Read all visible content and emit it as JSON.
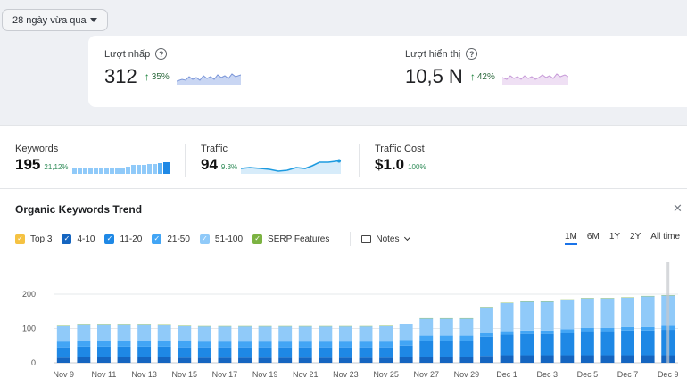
{
  "date_filter": {
    "label": "28 ngày vừa qua"
  },
  "gsc": {
    "clicks": {
      "label": "Lượt nhấp",
      "value": "312",
      "delta": "35%",
      "spark_color": "#7b96d8"
    },
    "impressions": {
      "label": "Lượt hiển thị",
      "value": "10,5 N",
      "delta": "42%",
      "spark_color": "#c79ad8"
    }
  },
  "kpis": {
    "keywords": {
      "label": "Keywords",
      "value": "195",
      "change": "21,12%"
    },
    "traffic": {
      "label": "Traffic",
      "value": "94",
      "change": "9.3%"
    },
    "traffic_cost": {
      "label": "Traffic Cost",
      "value": "$1.0",
      "change": "100%"
    }
  },
  "trend": {
    "title": "Organic Keywords Trend",
    "close_icon": "close-icon",
    "legend": [
      {
        "label": "Top 3",
        "color": "#f5c242"
      },
      {
        "label": "4-10",
        "color": "#1565c0"
      },
      {
        "label": "11-20",
        "color": "#1e88e5"
      },
      {
        "label": "21-50",
        "color": "#42a5f5"
      },
      {
        "label": "51-100",
        "color": "#90caf9"
      },
      {
        "label": "SERP Features",
        "color": "#7cb342"
      }
    ],
    "notes_label": "Notes",
    "ranges": [
      "1M",
      "6M",
      "1Y",
      "2Y",
      "All time"
    ],
    "active_range": "1M"
  },
  "chart_data": {
    "type": "bar",
    "stacked": true,
    "categories": [
      "Nov 9",
      "Nov 10",
      "Nov 11",
      "Nov 12",
      "Nov 13",
      "Nov 14",
      "Nov 15",
      "Nov 16",
      "Nov 17",
      "Nov 18",
      "Nov 19",
      "Nov 20",
      "Nov 21",
      "Nov 22",
      "Nov 23",
      "Nov 24",
      "Nov 25",
      "Nov 26",
      "Nov 27",
      "Nov 28",
      "Nov 29",
      "Nov 30",
      "Dec 1",
      "Dec 2",
      "Dec 3",
      "Dec 4",
      "Dec 5",
      "Dec 6",
      "Dec 7",
      "Dec 8",
      "Dec 9"
    ],
    "x_tick_labels": [
      "Nov 9",
      "Nov 11",
      "Nov 13",
      "Nov 15",
      "Nov 17",
      "Nov 19",
      "Nov 21",
      "Nov 23",
      "Nov 25",
      "Nov 27",
      "Nov 29",
      "Dec 1",
      "Dec 3",
      "Dec 5",
      "Dec 7",
      "Dec 9"
    ],
    "y_ticks": [
      0,
      100,
      200
    ],
    "ylim": [
      0,
      200
    ],
    "series": [
      {
        "name": "4-10",
        "color": "#1565c0",
        "values": [
          15,
          16,
          16,
          16,
          16,
          16,
          15,
          15,
          15,
          15,
          15,
          15,
          15,
          15,
          15,
          15,
          15,
          16,
          18,
          18,
          18,
          20,
          22,
          22,
          22,
          22,
          22,
          22,
          22,
          22,
          22
        ]
      },
      {
        "name": "11-20",
        "color": "#1e88e5",
        "values": [
          30,
          31,
          31,
          31,
          31,
          31,
          30,
          30,
          30,
          30,
          30,
          30,
          30,
          30,
          30,
          30,
          30,
          34,
          46,
          46,
          46,
          56,
          60,
          62,
          62,
          66,
          70,
          70,
          72,
          72,
          74
        ]
      },
      {
        "name": "21-50",
        "color": "#42a5f5",
        "values": [
          17,
          18,
          18,
          18,
          18,
          18,
          18,
          17,
          17,
          17,
          17,
          17,
          17,
          17,
          17,
          17,
          17,
          17,
          15,
          15,
          15,
          12,
          10,
          10,
          10,
          10,
          10,
          10,
          10,
          10,
          12
        ]
      },
      {
        "name": "51-100",
        "color": "#90caf9",
        "values": [
          45,
          45,
          45,
          45,
          45,
          44,
          44,
          44,
          44,
          44,
          44,
          44,
          44,
          44,
          44,
          44,
          45,
          46,
          50,
          50,
          50,
          74,
          82,
          84,
          84,
          86,
          86,
          86,
          86,
          90,
          88
        ]
      },
      {
        "name": "SERP Features",
        "color": "#7cb342",
        "values": [
          1,
          1,
          1,
          1,
          1,
          1,
          1,
          1,
          1,
          1,
          1,
          1,
          1,
          1,
          1,
          1,
          1,
          1,
          1,
          1,
          1,
          1,
          1,
          1,
          1,
          1,
          1,
          1,
          1,
          1,
          1
        ]
      }
    ]
  }
}
